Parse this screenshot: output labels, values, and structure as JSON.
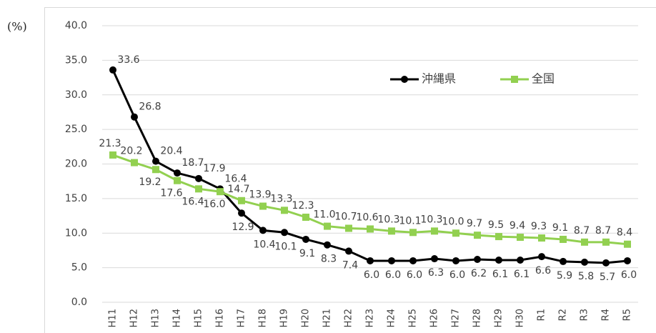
{
  "chart_data": {
    "type": "line",
    "unit_label": "(%)",
    "categories": [
      "H11",
      "H12",
      "H13",
      "H14",
      "H15",
      "H16",
      "H17",
      "H18",
      "H19",
      "H20",
      "H21",
      "H22",
      "H23",
      "H24",
      "H25",
      "H26",
      "H27",
      "H28",
      "H29",
      "H30",
      "R1",
      "R2",
      "R3",
      "R4",
      "R5"
    ],
    "series": [
      {
        "name": "沖縄県",
        "color": "#000000",
        "marker": "circle",
        "values": [
          33.6,
          26.8,
          20.4,
          18.7,
          17.9,
          16.4,
          12.9,
          10.4,
          10.1,
          9.1,
          8.3,
          7.4,
          6.0,
          6.0,
          6.0,
          6.3,
          6.0,
          6.2,
          6.1,
          6.1,
          6.6,
          5.9,
          5.8,
          5.7,
          6.0
        ],
        "value_labels": [
          "33.6",
          "26.8",
          "20.4",
          "18.7",
          "17.9",
          "16.4",
          "12.9",
          "10.4",
          "10.1",
          "9.1",
          "8.3",
          "7.4",
          "6.0",
          "6.0",
          "6.0",
          "6.3",
          "6.0",
          "6.2",
          "6.1",
          "6.1",
          "6.6",
          "5.9",
          "5.8",
          "5.7",
          "6.0"
        ]
      },
      {
        "name": "全国",
        "color": "#92d050",
        "marker": "square",
        "values": [
          21.3,
          20.2,
          19.2,
          17.6,
          16.4,
          16.0,
          14.7,
          13.9,
          13.3,
          12.3,
          11.0,
          10.7,
          10.6,
          10.3,
          10.1,
          10.3,
          10.0,
          9.7,
          9.5,
          9.4,
          9.3,
          9.1,
          8.7,
          8.7,
          8.4
        ],
        "value_labels": [
          "21.3",
          "20.2",
          "19.2",
          "17.6",
          "16.4",
          "16.0",
          "14.7",
          "13.9",
          "13.3",
          "12.3",
          "11.0",
          "10.7",
          "10.6",
          "10.3",
          "10.1",
          "10.3",
          "10.0",
          "9.7",
          "9.5",
          "9.4",
          "9.3",
          "9.1",
          "8.7",
          "8.7",
          "8.4"
        ]
      }
    ],
    "ylim": [
      0,
      40
    ],
    "yticks": [
      {
        "value": 0,
        "label": "0.0"
      },
      {
        "value": 5,
        "label": "5.0"
      },
      {
        "value": 10,
        "label": "10.0"
      },
      {
        "value": 15,
        "label": "15.0"
      },
      {
        "value": 20,
        "label": "20.0"
      },
      {
        "value": 25,
        "label": "25.0"
      },
      {
        "value": 30,
        "label": "30.0"
      },
      {
        "value": 35,
        "label": "35.0"
      },
      {
        "value": 40,
        "label": "40.0"
      }
    ],
    "grid": true,
    "legend": "top-right"
  }
}
